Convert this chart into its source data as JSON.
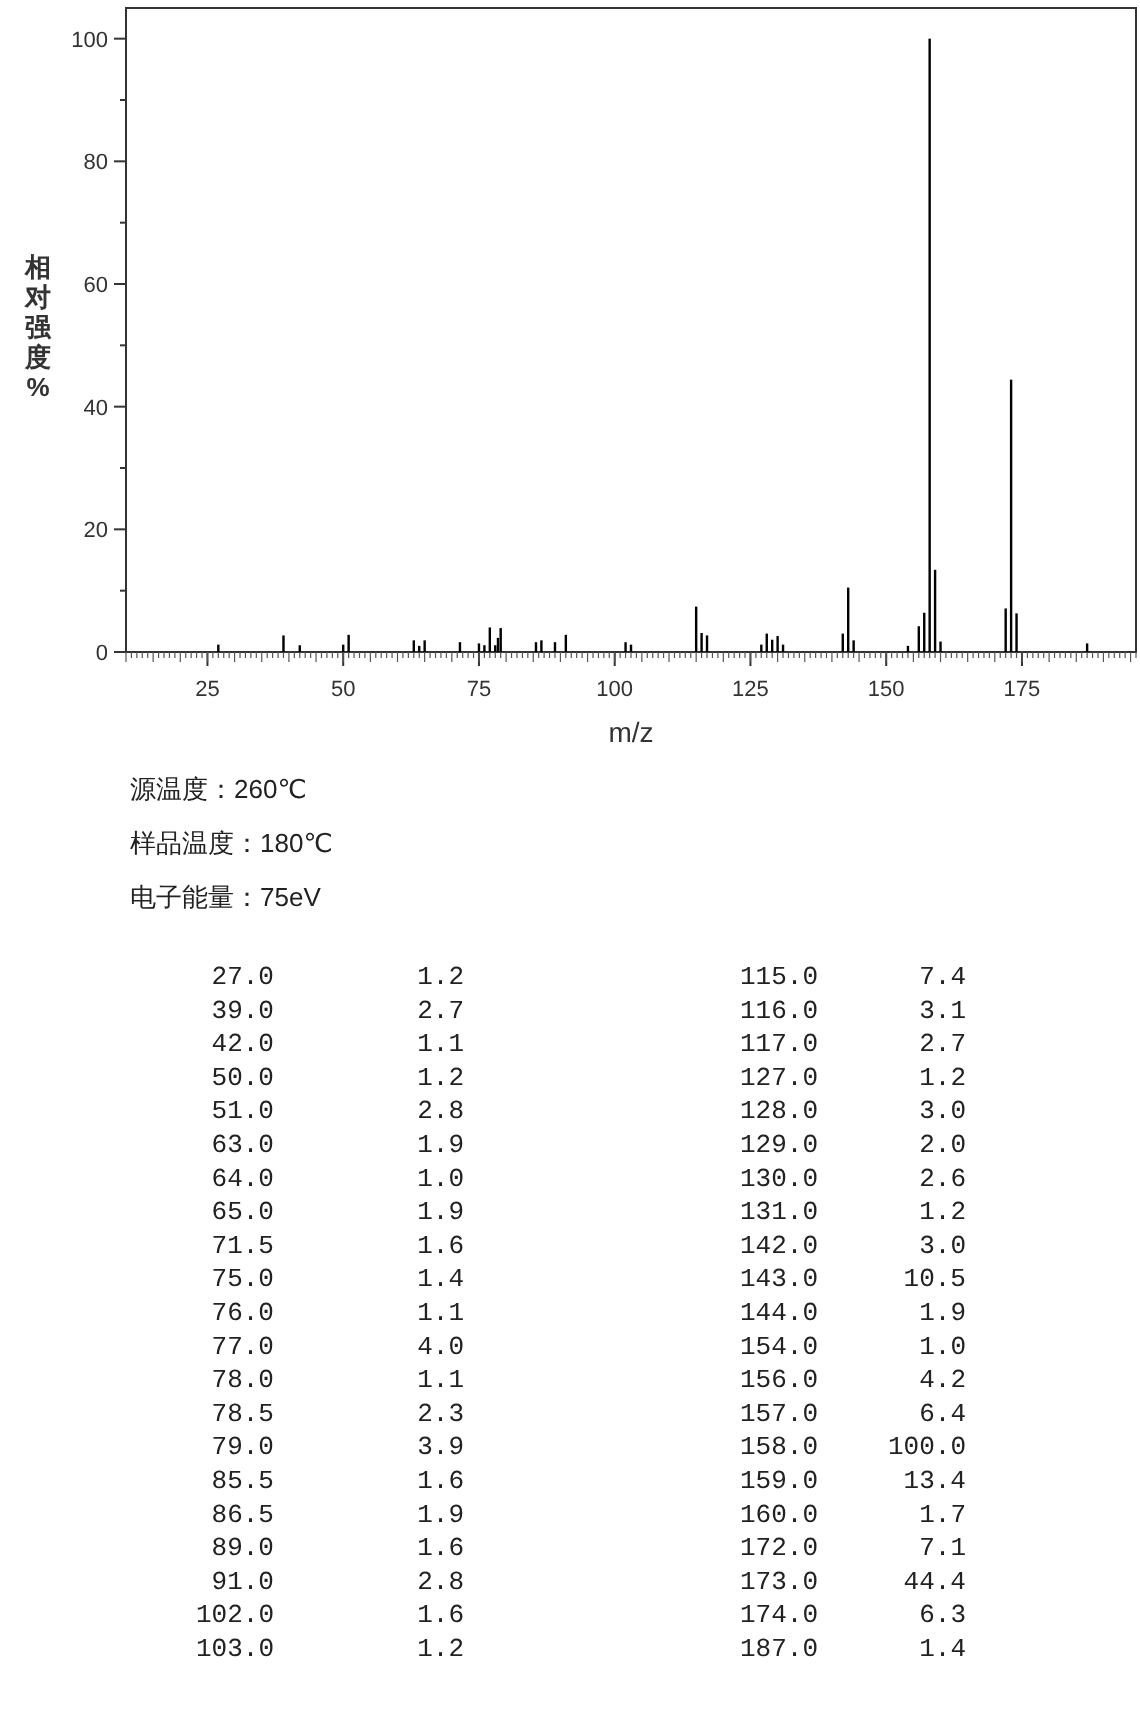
{
  "chart_data": {
    "type": "bar",
    "xlabel": "m/z",
    "ylabel": "相对强度%",
    "xlim": [
      10,
      196
    ],
    "xticks": [
      25,
      50,
      75,
      100,
      125,
      150,
      175
    ],
    "ylim": [
      0,
      105
    ],
    "yticks": [
      0,
      20,
      40,
      60,
      80,
      100
    ],
    "color": "#000000",
    "grid": false,
    "annotations": [
      "源温度：260℃",
      "样品温度：180℃",
      "电子能量：75eV",
      "27.0",
      "1.2",
      "39.0",
      "2.7",
      "42.0",
      "1.1",
      "50.0",
      "1.2",
      "51.0",
      "2.8",
      "63.0",
      "1.9",
      "64.0",
      "1.0",
      "65.0",
      "1.9",
      "71.5",
      "1.6",
      "75.0",
      "1.4",
      "76.0",
      "1.1",
      "77.0",
      "4.0",
      "78.0",
      "1.1",
      "78.5",
      "2.3",
      "79.0",
      "3.9",
      "85.5",
      "1.6",
      "86.5",
      "1.9",
      "89.0",
      "1.6",
      "91.0",
      "2.8",
      "102.0",
      "1.6",
      "103.0",
      "1.2",
      "115.0",
      "7.4",
      "116.0",
      "3.1",
      "117.0",
      "2.7",
      "127.0",
      "1.2",
      "128.0",
      "3.0",
      "129.0",
      "2.0",
      "130.0",
      "2.6",
      "131.0",
      "1.2",
      "142.0",
      "3.0",
      "143.0",
      "10.5",
      "144.0",
      "1.9",
      "154.0",
      "1.0",
      "156.0",
      "4.2",
      "157.0",
      "6.4",
      "158.0",
      "100.0",
      "159.0",
      "13.4",
      "160.0",
      "1.7",
      "172.0",
      "7.1",
      "173.0",
      "44.4",
      "174.0",
      "6.3",
      "187.0",
      "1.4"
    ],
    "x": [
      27.0,
      39.0,
      42.0,
      50.0,
      51.0,
      63.0,
      64.0,
      65.0,
      71.5,
      75.0,
      76.0,
      77.0,
      78.0,
      78.5,
      79.0,
      85.5,
      86.5,
      89.0,
      91.0,
      102.0,
      103.0,
      115.0,
      116.0,
      117.0,
      127.0,
      128.0,
      129.0,
      130.0,
      131.0,
      142.0,
      143.0,
      144.0,
      154.0,
      156.0,
      157.0,
      158.0,
      159.0,
      160.0,
      172.0,
      173.0,
      174.0,
      187.0
    ],
    "values": [
      1.2,
      2.7,
      1.1,
      1.2,
      2.8,
      1.9,
      1.0,
      1.9,
      1.6,
      1.4,
      1.1,
      4.0,
      1.1,
      2.3,
      3.9,
      1.6,
      1.9,
      1.6,
      2.8,
      1.6,
      1.2,
      7.4,
      3.1,
      2.7,
      1.2,
      3.0,
      2.0,
      2.6,
      1.2,
      3.0,
      10.5,
      1.9,
      1.0,
      4.2,
      6.4,
      100.0,
      13.4,
      1.7,
      7.1,
      44.4,
      6.3,
      1.4
    ]
  }
}
